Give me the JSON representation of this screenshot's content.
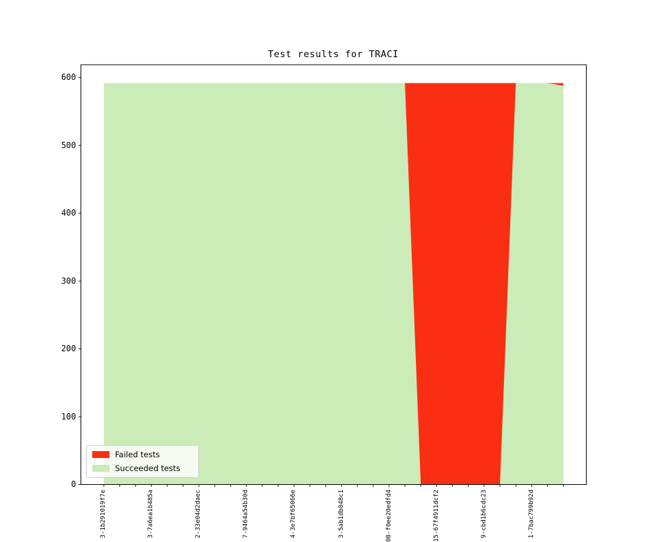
{
  "chart_data": {
    "type": "area",
    "stacked": true,
    "title": "Test results for TRACI",
    "n_points": 30,
    "x_label_every": 3,
    "x_tick_labels": [
      "3-1b291019f7e",
      "3-7a6ea1b485a",
      "2-33e04d2daec",
      "7-9464a54b30d",
      "4-3e7bf65066e",
      "3-5ab1db048c1",
      "08-f0ee20edfd4",
      "15-67f4911dcf2",
      "9-cbd1b6cdc23",
      "1-7bac799b92d"
    ],
    "series": [
      {
        "name": "Failed tests",
        "color": "#fa2e12",
        "values": [
          0,
          0,
          0,
          0,
          0,
          0,
          0,
          0,
          0,
          0,
          0,
          0,
          0,
          0,
          0,
          0,
          0,
          0,
          0,
          0,
          592,
          592,
          592,
          592,
          592,
          592,
          0,
          0,
          0,
          4
        ]
      },
      {
        "name": "Succeeded tests",
        "color": "#cbebb8",
        "values": [
          592,
          592,
          592,
          592,
          592,
          592,
          592,
          592,
          592,
          592,
          592,
          592,
          592,
          592,
          592,
          592,
          592,
          592,
          592,
          592,
          0,
          0,
          0,
          0,
          0,
          0,
          592,
          592,
          592,
          588
        ]
      }
    ],
    "stack_order": [
      1,
      0
    ],
    "total_tests": 592,
    "yticks": [
      0,
      100,
      200,
      300,
      400,
      500,
      600
    ],
    "ylim": [
      0,
      619
    ],
    "grid": false,
    "legend": {
      "position": "lower left",
      "entries": [
        "Failed tests",
        "Succeeded tests"
      ]
    }
  }
}
